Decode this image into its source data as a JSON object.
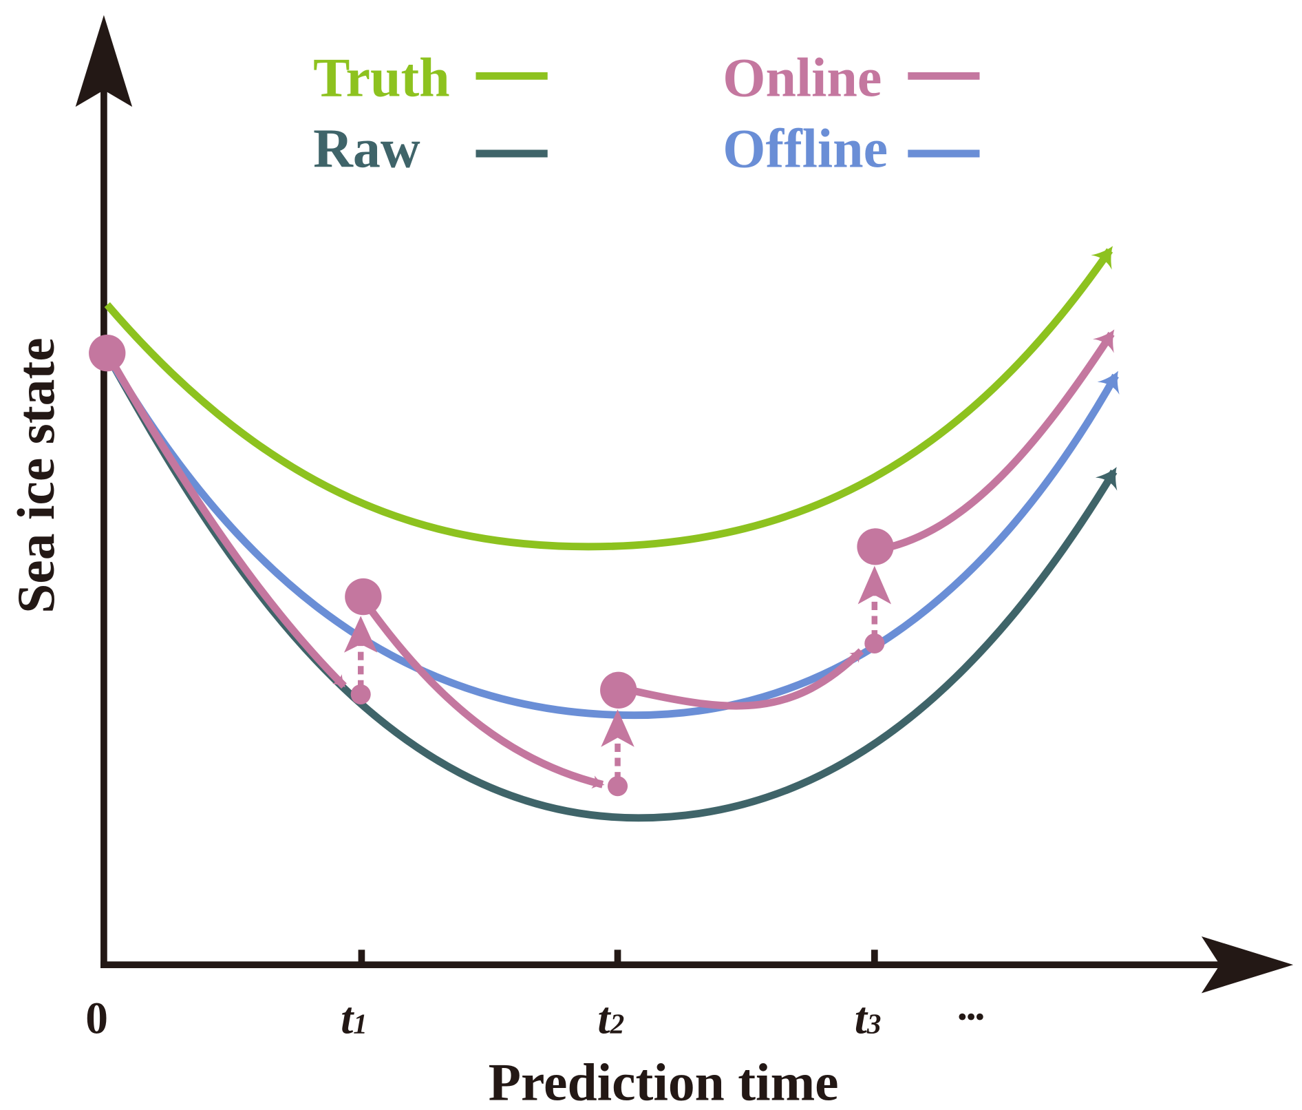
{
  "legend": {
    "truth": "Truth",
    "raw": "Raw",
    "online": "Online",
    "offline": "Offline"
  },
  "axes": {
    "xlabel": "Prediction time",
    "ylabel": "Sea ice state",
    "origin": "0",
    "ticks": [
      {
        "base": "t",
        "sub": "1"
      },
      {
        "base": "t",
        "sub": "2"
      },
      {
        "base": "t",
        "sub": "3"
      }
    ],
    "ellipsis": "•••"
  },
  "colors": {
    "truth": "#8DC21F",
    "raw": "#3F6469",
    "online": "#C4779F",
    "offline": "#6A8ED6",
    "axis": "#231815"
  }
}
